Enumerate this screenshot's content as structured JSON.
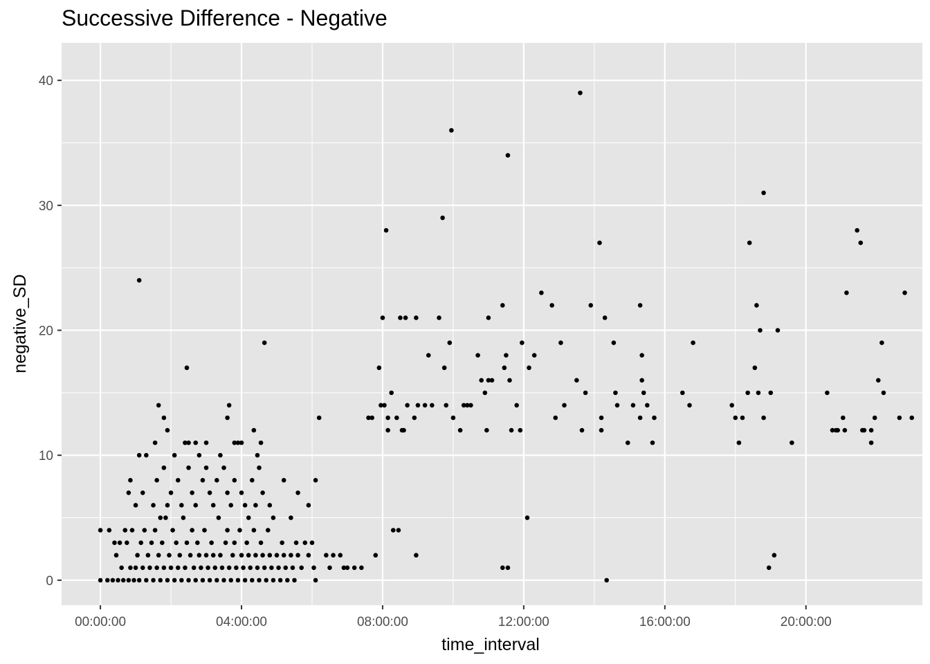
{
  "chart_data": {
    "type": "scatter",
    "title": "Successive Difference - Negative",
    "xlabel": "time_interval",
    "ylabel": "negative_SD",
    "x_unit": "hours",
    "xlim": [
      -1.1,
      23.3
    ],
    "ylim": [
      -2,
      43
    ],
    "x_ticks": [
      {
        "value": 0,
        "label": "00:00:00"
      },
      {
        "value": 4,
        "label": "04:00:00"
      },
      {
        "value": 8,
        "label": "08:00:00"
      },
      {
        "value": 12,
        "label": "12:00:00"
      },
      {
        "value": 16,
        "label": "16:00:00"
      },
      {
        "value": 20,
        "label": "20:00:00"
      }
    ],
    "y_ticks": [
      {
        "value": 0,
        "label": "0"
      },
      {
        "value": 10,
        "label": "10"
      },
      {
        "value": 20,
        "label": "20"
      },
      {
        "value": 30,
        "label": "30"
      },
      {
        "value": 40,
        "label": "40"
      }
    ],
    "grid": true,
    "background": "#e5e5e5",
    "grid_color": "#ffffff",
    "point_color": "#000000",
    "points": [
      [
        0,
        0
      ],
      [
        0,
        4
      ],
      [
        0.2,
        0
      ],
      [
        0.25,
        4
      ],
      [
        0.35,
        0
      ],
      [
        0.4,
        3
      ],
      [
        0.45,
        2
      ],
      [
        0.5,
        0
      ],
      [
        0.55,
        3
      ],
      [
        0.6,
        1
      ],
      [
        0.65,
        0
      ],
      [
        0.7,
        4
      ],
      [
        0.75,
        3
      ],
      [
        0.8,
        0
      ],
      [
        0.85,
        1
      ],
      [
        0.9,
        4
      ],
      [
        0.95,
        0
      ],
      [
        1.0,
        1
      ],
      [
        1.05,
        2
      ],
      [
        1.1,
        0
      ],
      [
        1.15,
        3
      ],
      [
        1.2,
        1
      ],
      [
        1.25,
        4
      ],
      [
        1.3,
        0
      ],
      [
        1.35,
        2
      ],
      [
        1.4,
        1
      ],
      [
        1.45,
        3
      ],
      [
        1.5,
        0
      ],
      [
        1.55,
        4
      ],
      [
        1.6,
        1
      ],
      [
        1.65,
        2
      ],
      [
        1.7,
        0
      ],
      [
        1.75,
        3
      ],
      [
        1.8,
        1
      ],
      [
        1.85,
        5
      ],
      [
        1.9,
        0
      ],
      [
        1.95,
        2
      ],
      [
        2.0,
        1
      ],
      [
        2.05,
        4
      ],
      [
        2.1,
        0
      ],
      [
        2.15,
        3
      ],
      [
        2.2,
        1
      ],
      [
        2.25,
        2
      ],
      [
        2.3,
        0
      ],
      [
        2.35,
        5
      ],
      [
        2.4,
        1
      ],
      [
        2.45,
        3
      ],
      [
        2.5,
        0
      ],
      [
        2.55,
        2
      ],
      [
        2.6,
        4
      ],
      [
        2.65,
        1
      ],
      [
        2.7,
        0
      ],
      [
        2.75,
        3
      ],
      [
        2.8,
        2
      ],
      [
        2.85,
        1
      ],
      [
        2.9,
        0
      ],
      [
        2.95,
        4
      ],
      [
        3.0,
        2
      ],
      [
        3.05,
        1
      ],
      [
        3.1,
        0
      ],
      [
        3.15,
        3
      ],
      [
        3.2,
        2
      ],
      [
        3.25,
        1
      ],
      [
        3.3,
        0
      ],
      [
        3.35,
        5
      ],
      [
        3.4,
        2
      ],
      [
        3.45,
        1
      ],
      [
        3.5,
        0
      ],
      [
        3.55,
        3
      ],
      [
        3.6,
        4
      ],
      [
        3.65,
        1
      ],
      [
        3.7,
        0
      ],
      [
        3.75,
        2
      ],
      [
        3.8,
        3
      ],
      [
        3.85,
        1
      ],
      [
        3.9,
        0
      ],
      [
        3.95,
        4
      ],
      [
        4.0,
        2
      ],
      [
        4.05,
        1
      ],
      [
        4.1,
        0
      ],
      [
        4.15,
        3
      ],
      [
        4.2,
        2
      ],
      [
        4.25,
        1
      ],
      [
        4.3,
        0
      ],
      [
        4.35,
        4
      ],
      [
        4.4,
        2
      ],
      [
        4.45,
        1
      ],
      [
        4.5,
        0
      ],
      [
        4.55,
        3
      ],
      [
        4.6,
        2
      ],
      [
        4.65,
        1
      ],
      [
        4.7,
        0
      ],
      [
        4.75,
        4
      ],
      [
        4.8,
        2
      ],
      [
        4.85,
        1
      ],
      [
        4.9,
        0
      ],
      [
        5.0,
        2
      ],
      [
        5.05,
        1
      ],
      [
        5.1,
        0
      ],
      [
        5.15,
        3
      ],
      [
        5.2,
        2
      ],
      [
        5.25,
        1
      ],
      [
        5.3,
        0
      ],
      [
        5.4,
        2
      ],
      [
        5.45,
        1
      ],
      [
        5.5,
        0
      ],
      [
        5.55,
        3
      ],
      [
        5.6,
        2
      ],
      [
        5.7,
        1
      ],
      [
        5.8,
        3
      ],
      [
        5.9,
        2
      ],
      [
        6.0,
        3
      ],
      [
        6.05,
        1
      ],
      [
        6.1,
        0
      ],
      [
        1.0,
        6
      ],
      [
        1.2,
        7
      ],
      [
        1.3,
        10
      ],
      [
        1.5,
        6
      ],
      [
        1.6,
        8
      ],
      [
        1.7,
        5
      ],
      [
        1.8,
        9
      ],
      [
        1.9,
        6
      ],
      [
        2.0,
        7
      ],
      [
        2.1,
        10
      ],
      [
        2.2,
        8
      ],
      [
        2.3,
        6
      ],
      [
        2.4,
        11
      ],
      [
        2.5,
        9
      ],
      [
        2.6,
        7
      ],
      [
        2.7,
        6
      ],
      [
        2.8,
        10
      ],
      [
        2.9,
        8
      ],
      [
        3.0,
        9
      ],
      [
        3.1,
        7
      ],
      [
        3.2,
        6
      ],
      [
        3.3,
        8
      ],
      [
        3.4,
        10
      ],
      [
        3.5,
        9
      ],
      [
        3.6,
        7
      ],
      [
        3.7,
        6
      ],
      [
        3.8,
        8
      ],
      [
        3.9,
        11
      ],
      [
        4.0,
        7
      ],
      [
        4.1,
        6
      ],
      [
        4.2,
        5
      ],
      [
        4.3,
        8
      ],
      [
        4.4,
        6
      ],
      [
        4.5,
        9
      ],
      [
        4.6,
        7
      ],
      [
        4.8,
        6
      ],
      [
        4.9,
        5
      ],
      [
        5.2,
        8
      ],
      [
        5.4,
        5
      ],
      [
        5.6,
        7
      ],
      [
        5.9,
        6
      ],
      [
        6.1,
        8
      ],
      [
        0.8,
        7
      ],
      [
        0.85,
        8
      ],
      [
        1.1,
        10
      ],
      [
        1.55,
        11
      ],
      [
        1.65,
        14
      ],
      [
        1.8,
        13
      ],
      [
        1.9,
        12
      ],
      [
        2.5,
        11
      ],
      [
        2.7,
        11
      ],
      [
        3.0,
        11
      ],
      [
        3.6,
        13
      ],
      [
        3.65,
        14
      ],
      [
        3.8,
        11
      ],
      [
        4.0,
        11
      ],
      [
        4.35,
        12
      ],
      [
        4.45,
        10
      ],
      [
        4.55,
        11
      ],
      [
        1.1,
        24
      ],
      [
        2.45,
        17
      ],
      [
        4.65,
        19
      ],
      [
        6.2,
        13
      ],
      [
        6.4,
        2
      ],
      [
        6.5,
        1
      ],
      [
        6.6,
        2
      ],
      [
        6.8,
        2
      ],
      [
        6.9,
        1
      ],
      [
        7.0,
        1
      ],
      [
        7.2,
        1
      ],
      [
        7.4,
        1
      ],
      [
        7.6,
        13
      ],
      [
        7.7,
        13
      ],
      [
        7.8,
        2
      ],
      [
        7.9,
        17
      ],
      [
        7.95,
        14
      ],
      [
        8.0,
        21
      ],
      [
        8.05,
        14
      ],
      [
        8.1,
        28
      ],
      [
        8.15,
        13
      ],
      [
        8.15,
        12
      ],
      [
        8.25,
        15
      ],
      [
        8.3,
        4
      ],
      [
        8.4,
        13
      ],
      [
        8.45,
        4
      ],
      [
        8.5,
        21
      ],
      [
        8.55,
        12
      ],
      [
        8.6,
        12
      ],
      [
        8.65,
        21
      ],
      [
        8.7,
        14
      ],
      [
        8.9,
        13
      ],
      [
        8.95,
        2
      ],
      [
        8.95,
        21
      ],
      [
        9.0,
        14
      ],
      [
        9.2,
        14
      ],
      [
        9.3,
        18
      ],
      [
        9.4,
        14
      ],
      [
        9.6,
        21
      ],
      [
        9.7,
        29
      ],
      [
        9.75,
        17
      ],
      [
        9.8,
        14
      ],
      [
        9.9,
        19
      ],
      [
        9.95,
        36
      ],
      [
        10.0,
        13
      ],
      [
        10.2,
        12
      ],
      [
        10.3,
        14
      ],
      [
        10.4,
        14
      ],
      [
        10.5,
        14
      ],
      [
        10.7,
        18
      ],
      [
        10.8,
        16
      ],
      [
        10.9,
        15
      ],
      [
        10.95,
        12
      ],
      [
        11.0,
        21
      ],
      [
        11.0,
        16
      ],
      [
        11.1,
        16
      ],
      [
        11.4,
        22
      ],
      [
        11.45,
        17
      ],
      [
        11.5,
        18
      ],
      [
        11.55,
        34
      ],
      [
        11.6,
        16
      ],
      [
        11.65,
        12
      ],
      [
        11.8,
        14
      ],
      [
        11.9,
        12
      ],
      [
        11.95,
        19
      ],
      [
        12.1,
        5
      ],
      [
        12.15,
        17
      ],
      [
        12.3,
        18
      ],
      [
        11.4,
        1
      ],
      [
        11.55,
        1
      ],
      [
        12.5,
        23
      ],
      [
        12.8,
        22
      ],
      [
        12.9,
        13
      ],
      [
        13.05,
        19
      ],
      [
        13.15,
        14
      ],
      [
        13.5,
        16
      ],
      [
        13.6,
        39
      ],
      [
        13.65,
        12
      ],
      [
        13.75,
        15
      ],
      [
        13.9,
        22
      ],
      [
        14.15,
        27
      ],
      [
        14.2,
        12
      ],
      [
        14.2,
        13
      ],
      [
        14.3,
        21
      ],
      [
        14.35,
        0
      ],
      [
        14.55,
        19
      ],
      [
        14.6,
        15
      ],
      [
        14.65,
        14
      ],
      [
        14.95,
        11
      ],
      [
        15.1,
        14
      ],
      [
        15.3,
        22
      ],
      [
        15.3,
        13
      ],
      [
        15.35,
        16
      ],
      [
        15.35,
        18
      ],
      [
        15.4,
        15
      ],
      [
        15.5,
        14
      ],
      [
        15.65,
        11
      ],
      [
        15.7,
        13
      ],
      [
        16.5,
        15
      ],
      [
        16.7,
        14
      ],
      [
        16.8,
        19
      ],
      [
        17.9,
        14
      ],
      [
        18.0,
        13
      ],
      [
        18.1,
        11
      ],
      [
        18.2,
        13
      ],
      [
        18.35,
        15
      ],
      [
        18.4,
        27
      ],
      [
        18.55,
        17
      ],
      [
        18.6,
        22
      ],
      [
        18.65,
        15
      ],
      [
        18.7,
        20
      ],
      [
        18.8,
        31
      ],
      [
        18.8,
        13
      ],
      [
        18.95,
        1
      ],
      [
        19.0,
        15
      ],
      [
        19.1,
        2
      ],
      [
        19.2,
        20
      ],
      [
        19.6,
        11
      ],
      [
        20.6,
        15
      ],
      [
        20.75,
        12
      ],
      [
        20.85,
        12
      ],
      [
        20.9,
        12
      ],
      [
        21.05,
        13
      ],
      [
        21.1,
        12
      ],
      [
        21.15,
        23
      ],
      [
        21.45,
        28
      ],
      [
        21.55,
        27
      ],
      [
        21.6,
        12
      ],
      [
        21.65,
        12
      ],
      [
        21.85,
        12
      ],
      [
        21.85,
        11
      ],
      [
        21.95,
        13
      ],
      [
        22.05,
        16
      ],
      [
        22.15,
        19
      ],
      [
        22.2,
        15
      ],
      [
        22.65,
        13
      ],
      [
        22.8,
        23
      ],
      [
        23.0,
        13
      ]
    ]
  }
}
